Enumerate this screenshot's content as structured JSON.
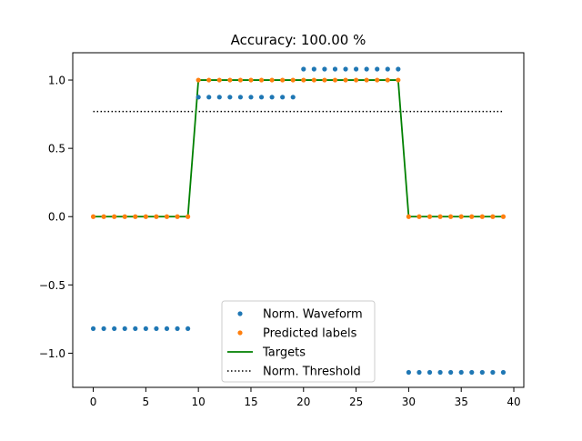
{
  "chart_data": {
    "type": "scatter",
    "title": "Accuracy: 100.00 %",
    "xlabel": "",
    "ylabel": "",
    "xlim": [
      -1.95,
      40.95
    ],
    "ylim": [
      -1.25,
      1.2
    ],
    "xticks": [
      0,
      5,
      10,
      15,
      20,
      25,
      30,
      35,
      40
    ],
    "yticks": [
      -1.0,
      -0.5,
      0.0,
      0.5,
      1.0
    ],
    "xtick_labels": [
      "0",
      "5",
      "10",
      "15",
      "20",
      "25",
      "30",
      "35",
      "40"
    ],
    "ytick_labels": [
      "−1.0",
      "−0.5",
      "0.0",
      "0.5",
      "1.0"
    ],
    "grid": false,
    "legend_position": "bottom-center",
    "x": [
      0,
      1,
      2,
      3,
      4,
      5,
      6,
      7,
      8,
      9,
      10,
      11,
      12,
      13,
      14,
      15,
      16,
      17,
      18,
      19,
      20,
      21,
      22,
      23,
      24,
      25,
      26,
      27,
      28,
      29,
      30,
      31,
      32,
      33,
      34,
      35,
      36,
      37,
      38,
      39
    ],
    "series": [
      {
        "name": "Norm. Waveform",
        "style": "dots",
        "color": "#1f77b4",
        "values": [
          -0.82,
          -0.82,
          -0.82,
          -0.82,
          -0.82,
          -0.82,
          -0.82,
          -0.82,
          -0.82,
          -0.82,
          0.875,
          0.875,
          0.875,
          0.875,
          0.875,
          0.875,
          0.875,
          0.875,
          0.875,
          0.875,
          1.08,
          1.08,
          1.08,
          1.08,
          1.08,
          1.08,
          1.08,
          1.08,
          1.08,
          1.08,
          -1.14,
          -1.14,
          -1.14,
          -1.14,
          -1.14,
          -1.14,
          -1.14,
          -1.14,
          -1.14,
          -1.14
        ]
      },
      {
        "name": "Predicted labels",
        "style": "dots",
        "color": "#ff7f0e",
        "values": [
          0,
          0,
          0,
          0,
          0,
          0,
          0,
          0,
          0,
          0,
          1,
          1,
          1,
          1,
          1,
          1,
          1,
          1,
          1,
          1,
          1,
          1,
          1,
          1,
          1,
          1,
          1,
          1,
          1,
          1,
          0,
          0,
          0,
          0,
          0,
          0,
          0,
          0,
          0,
          0
        ]
      },
      {
        "name": "Targets",
        "style": "line",
        "color": "#008000",
        "values": [
          0,
          0,
          0,
          0,
          0,
          0,
          0,
          0,
          0,
          0,
          1,
          1,
          1,
          1,
          1,
          1,
          1,
          1,
          1,
          1,
          1,
          1,
          1,
          1,
          1,
          1,
          1,
          1,
          1,
          1,
          0,
          0,
          0,
          0,
          0,
          0,
          0,
          0,
          0,
          0
        ]
      },
      {
        "name": "Norm. Threshold",
        "style": "dotted-line",
        "color": "#000000",
        "values": [
          0.77,
          0.77,
          0.77,
          0.77,
          0.77,
          0.77,
          0.77,
          0.77,
          0.77,
          0.77,
          0.77,
          0.77,
          0.77,
          0.77,
          0.77,
          0.77,
          0.77,
          0.77,
          0.77,
          0.77,
          0.77,
          0.77,
          0.77,
          0.77,
          0.77,
          0.77,
          0.77,
          0.77,
          0.77,
          0.77,
          0.77,
          0.77,
          0.77,
          0.77,
          0.77,
          0.77,
          0.77,
          0.77,
          0.77,
          0.77
        ]
      }
    ]
  }
}
